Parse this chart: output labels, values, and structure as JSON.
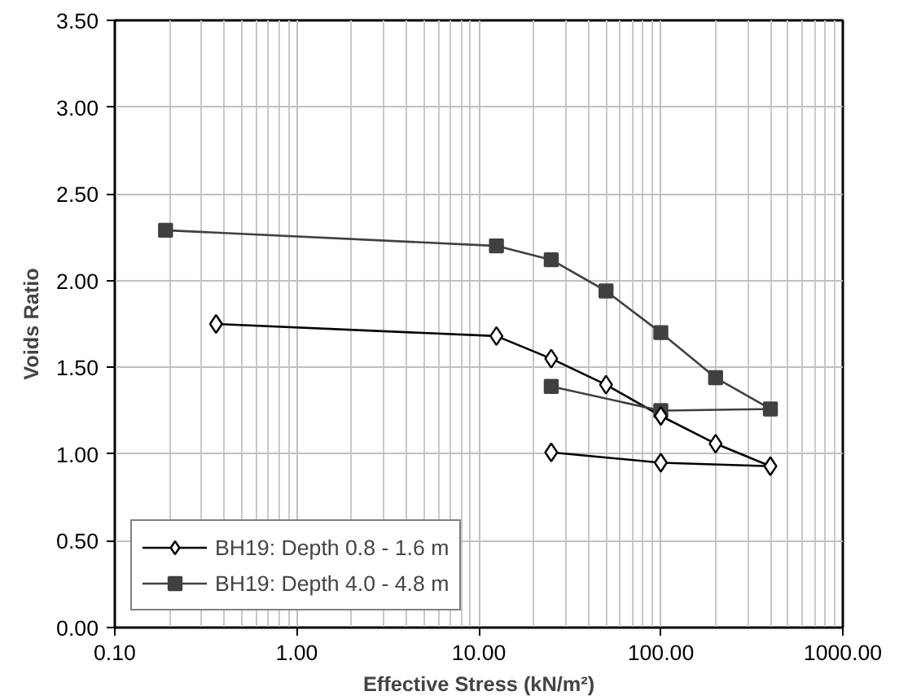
{
  "chart_data": {
    "type": "line",
    "xlabel": "Effective Stress (kN/m²)",
    "ylabel": "Voids Ratio",
    "log": "x",
    "grid": true,
    "legend": "bottom left",
    "xlim": [
      0.1,
      1000
    ],
    "xticks": [
      {
        "value": 0.1,
        "label": "0.10"
      },
      {
        "value": 1,
        "label": "1.00"
      },
      {
        "value": 10,
        "label": "10.00"
      },
      {
        "value": 100,
        "label": "100.00"
      },
      {
        "value": 1000,
        "label": "1000.00"
      }
    ],
    "ylim": [
      0,
      3.5
    ],
    "yticks": [
      {
        "value": 0,
        "label": "0.00"
      },
      {
        "value": 0.5,
        "label": "0.50"
      },
      {
        "value": 1,
        "label": "1.00"
      },
      {
        "value": 1.5,
        "label": "1.50"
      },
      {
        "value": 2,
        "label": "2.00"
      },
      {
        "value": 2.5,
        "label": "2.50"
      },
      {
        "value": 3,
        "label": "3.00"
      },
      {
        "value": 3.5,
        "label": "3.50"
      }
    ],
    "series": [
      {
        "name": "BH19: Depth 0.8 - 1.6 m",
        "color": "#000000",
        "marker": "diamond",
        "x": [
          0.36,
          12.5,
          25,
          50,
          100,
          200,
          400,
          100,
          25
        ],
        "values": [
          1.75,
          1.68,
          1.55,
          1.4,
          1.22,
          1.06,
          0.93,
          0.95,
          1.01
        ]
      },
      {
        "name": "BH19: Depth 4.0 - 4.8 m",
        "color": "#404040",
        "marker": "square",
        "x": [
          0.19,
          12.5,
          25,
          50,
          100,
          200,
          400,
          100,
          25
        ],
        "values": [
          2.29,
          2.2,
          2.12,
          1.94,
          1.7,
          1.44,
          1.26,
          1.25,
          1.39
        ]
      }
    ]
  }
}
